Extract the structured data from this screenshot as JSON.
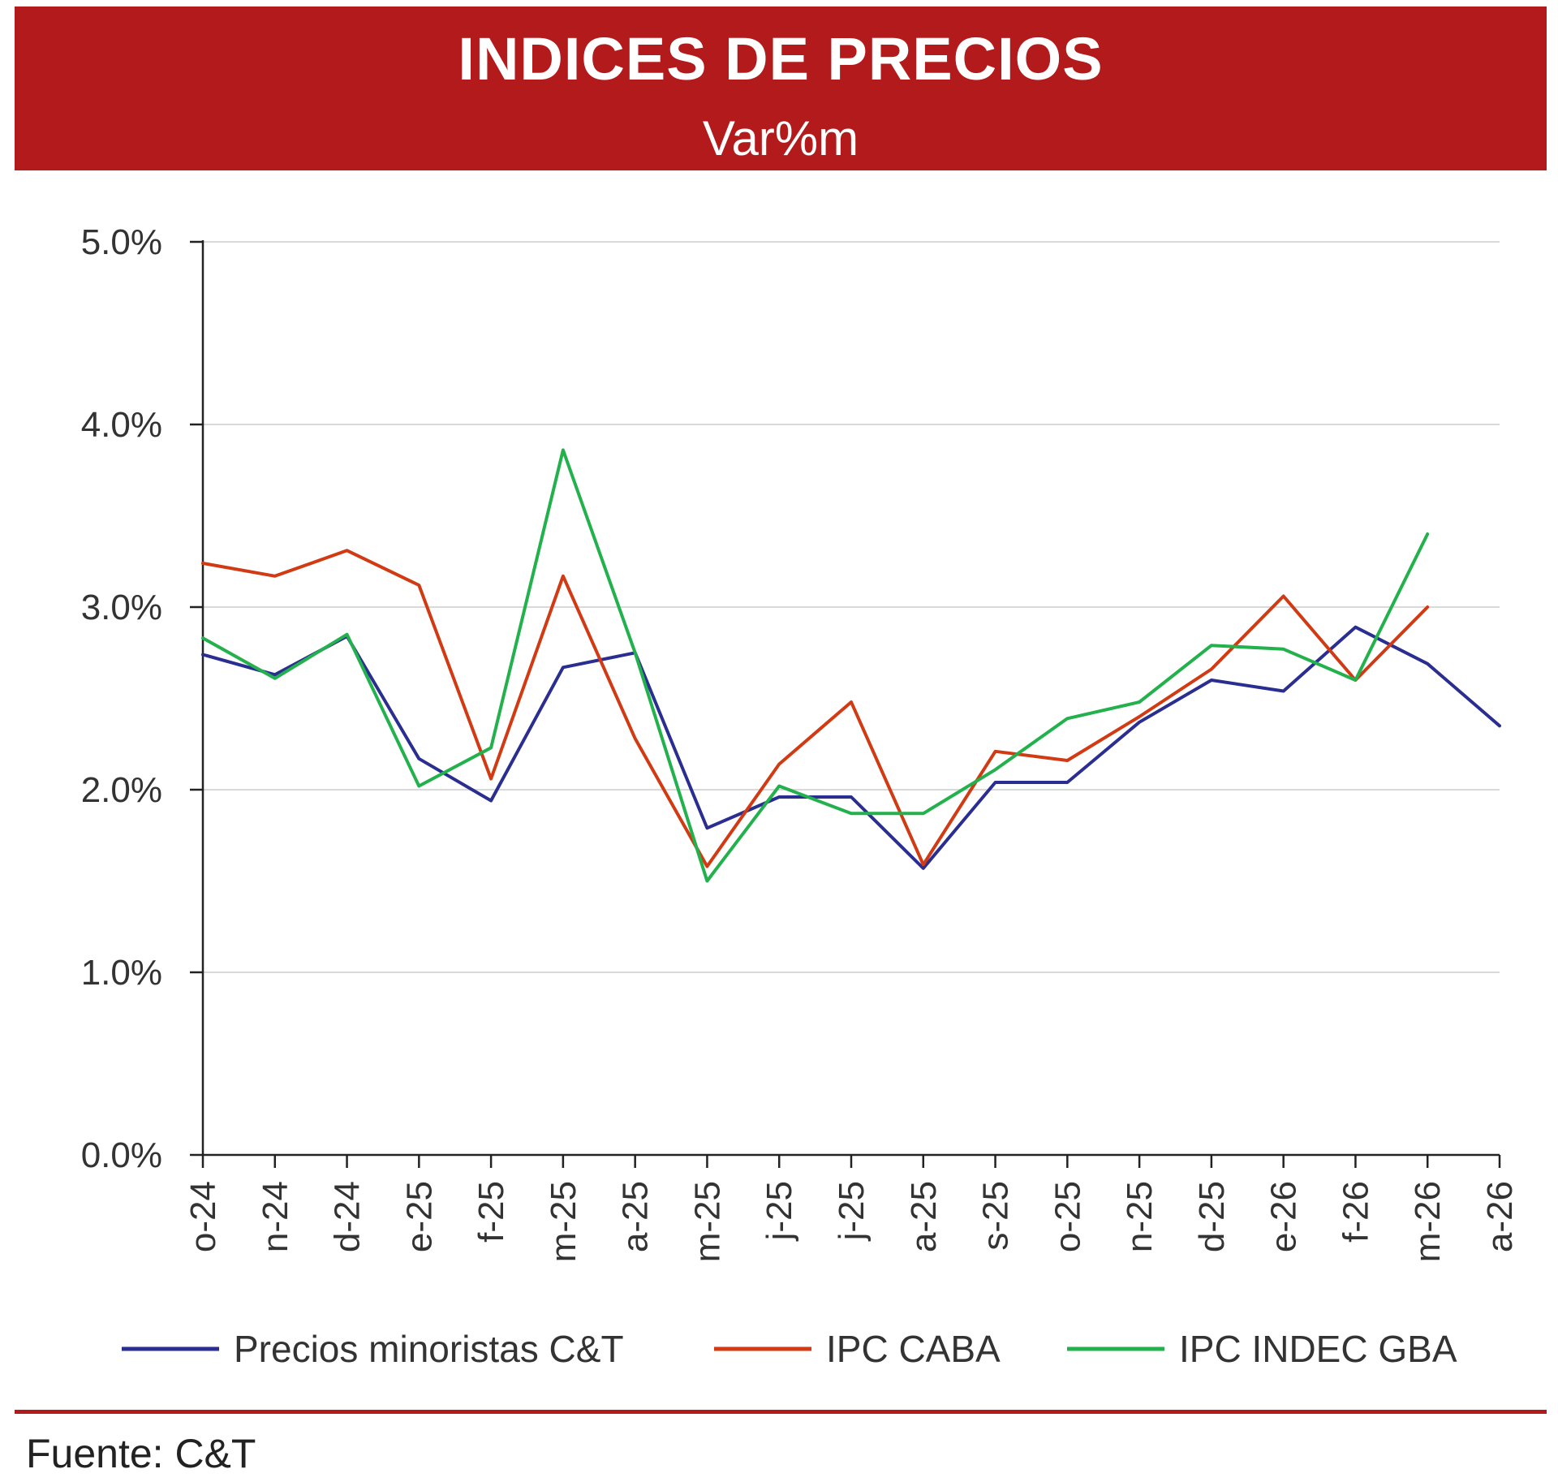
{
  "header": {
    "title": "INDICES DE PRECIOS",
    "subtitle": "Var%m"
  },
  "footer": {
    "source": "Fuente: C&T"
  },
  "colors": {
    "banner": "#B21A1C",
    "rule": "#B21A1C"
  },
  "chart_data": {
    "type": "line",
    "title": "INDICES DE PRECIOS",
    "subtitle": "Var%m",
    "categories": [
      "o-24",
      "n-24",
      "d-24",
      "e-25",
      "f-25",
      "m-25",
      "a-25",
      "m-25",
      "j-25",
      "j-25",
      "a-25",
      "s-25",
      "o-25",
      "n-25",
      "d-25",
      "e-26",
      "f-26",
      "m-26",
      "a-26"
    ],
    "ylim": [
      0,
      5
    ],
    "yticks": [
      0,
      1,
      2,
      3,
      4,
      5
    ],
    "ytick_labels": [
      "0.0%",
      "1.0%",
      "2.0%",
      "3.0%",
      "4.0%",
      "5.0%"
    ],
    "grid": true,
    "legend_position": "bottom",
    "series": [
      {
        "name": "Precios minoristas C&T",
        "color": "#2B2E91",
        "values": [
          2.74,
          2.63,
          2.84,
          2.17,
          1.94,
          2.67,
          2.75,
          1.79,
          1.96,
          1.96,
          1.57,
          2.04,
          2.04,
          2.37,
          2.6,
          2.54,
          2.89,
          2.69,
          2.35
        ]
      },
      {
        "name": "IPC CABA",
        "color": "#D13A12",
        "values": [
          3.24,
          3.17,
          3.31,
          3.12,
          2.06,
          3.17,
          2.28,
          1.58,
          2.14,
          2.48,
          1.59,
          2.21,
          2.16,
          2.4,
          2.66,
          3.06,
          2.6,
          3.0,
          null
        ]
      },
      {
        "name": "IPC INDEC GBA",
        "color": "#22B14C",
        "values": [
          2.83,
          2.61,
          2.85,
          2.02,
          2.23,
          3.86,
          2.75,
          1.5,
          2.02,
          1.87,
          1.87,
          2.11,
          2.39,
          2.48,
          2.79,
          2.77,
          2.6,
          3.4,
          null
        ]
      }
    ]
  }
}
